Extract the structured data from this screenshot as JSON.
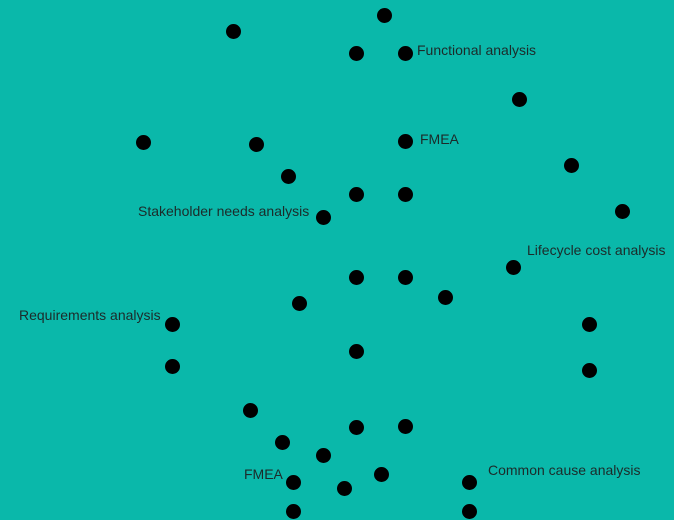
{
  "colors": {
    "background": "#0ab8aa",
    "node": "#000000",
    "label": "#1c2b2a"
  },
  "labels": {
    "functional_analysis": "Functional analysis",
    "fmea_top": "FMEA",
    "stakeholder_needs_analysis": "Stakeholder needs analysis",
    "lifecycle_cost_analysis": "Lifecycle cost analysis",
    "requirements_analysis": "Requirements analysis",
    "fmea_bottom": "FMEA",
    "common_cause_analysis": "Common cause analysis"
  }
}
